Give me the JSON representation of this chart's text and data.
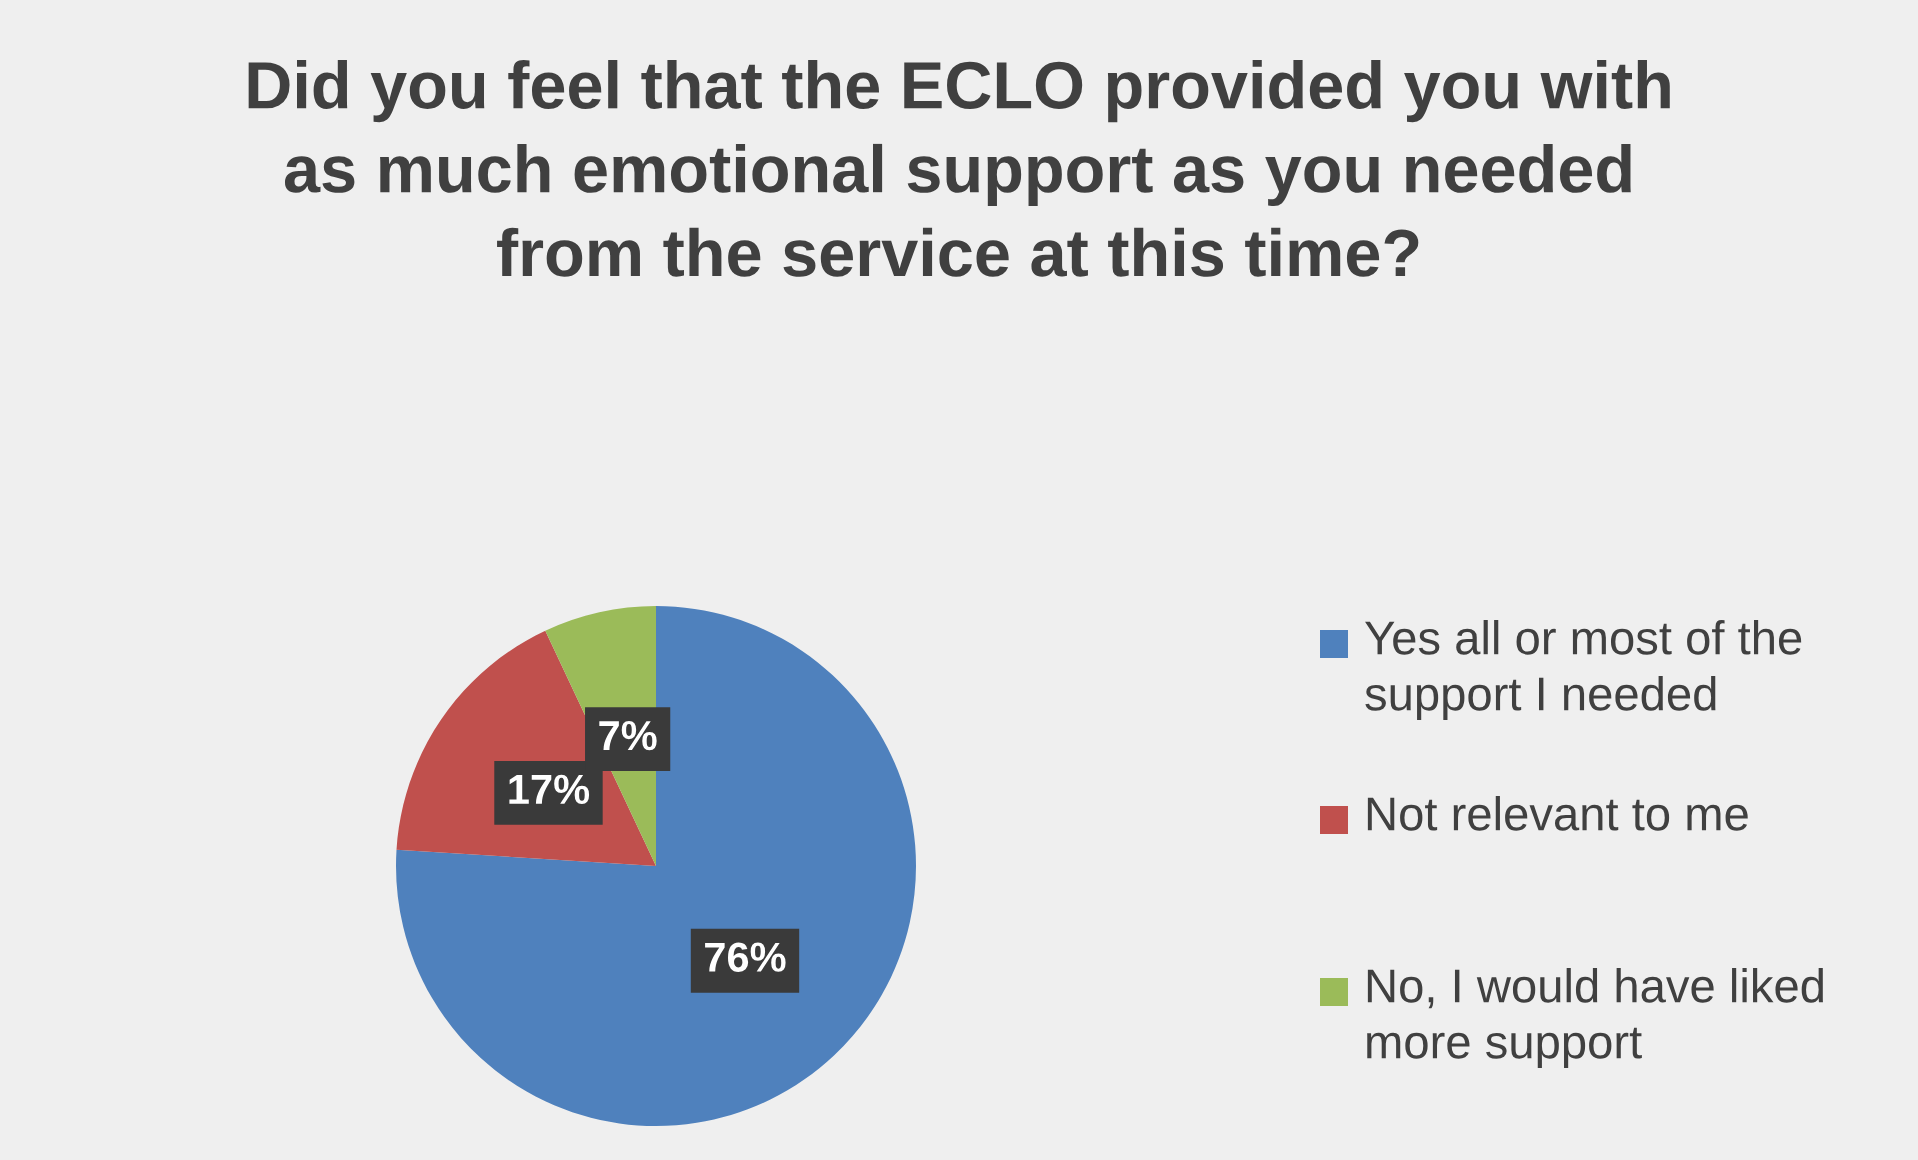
{
  "chart_data": {
    "type": "pie",
    "title": "Did you feel that the ECLO provided you with as much emotional support as you needed from the service at this time?",
    "categories": [
      "Yes all or most of the support I needed",
      "Not relevant to me",
      "No, I would have liked more support"
    ],
    "values": [
      76,
      17,
      7
    ],
    "colors": [
      "#4f81bd",
      "#c0504d",
      "#9bbb59"
    ],
    "value_labels": [
      "76%",
      "17%",
      "7%"
    ],
    "legend": "right"
  }
}
